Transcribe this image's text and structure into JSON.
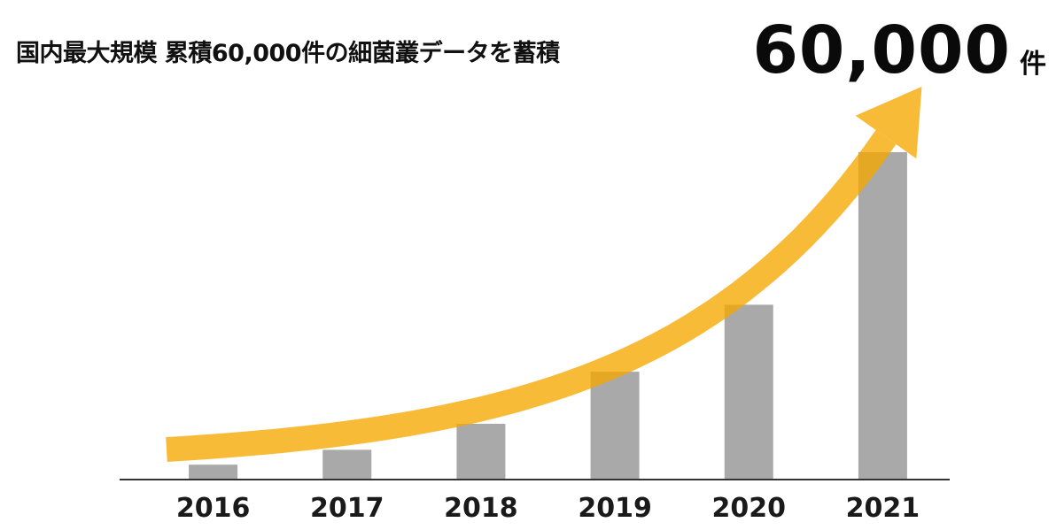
{
  "title": "国内最大規模 累積60,000件の細菌叢データを蓄積",
  "total": {
    "value": "60,000",
    "unit": "件"
  },
  "colors": {
    "bar": "#a9a9a9",
    "arrow": "#f6a800",
    "axis": "#333333"
  },
  "chart_data": {
    "type": "bar",
    "categories": [
      "2016",
      "2017",
      "2018",
      "2019",
      "2020",
      "2021"
    ],
    "values": [
      2000,
      4000,
      7500,
      14500,
      23500,
      44000
    ],
    "ylim": [
      0,
      44000
    ],
    "grid": false,
    "legend": "none",
    "annotation": "upward-curving arrow over bars"
  }
}
